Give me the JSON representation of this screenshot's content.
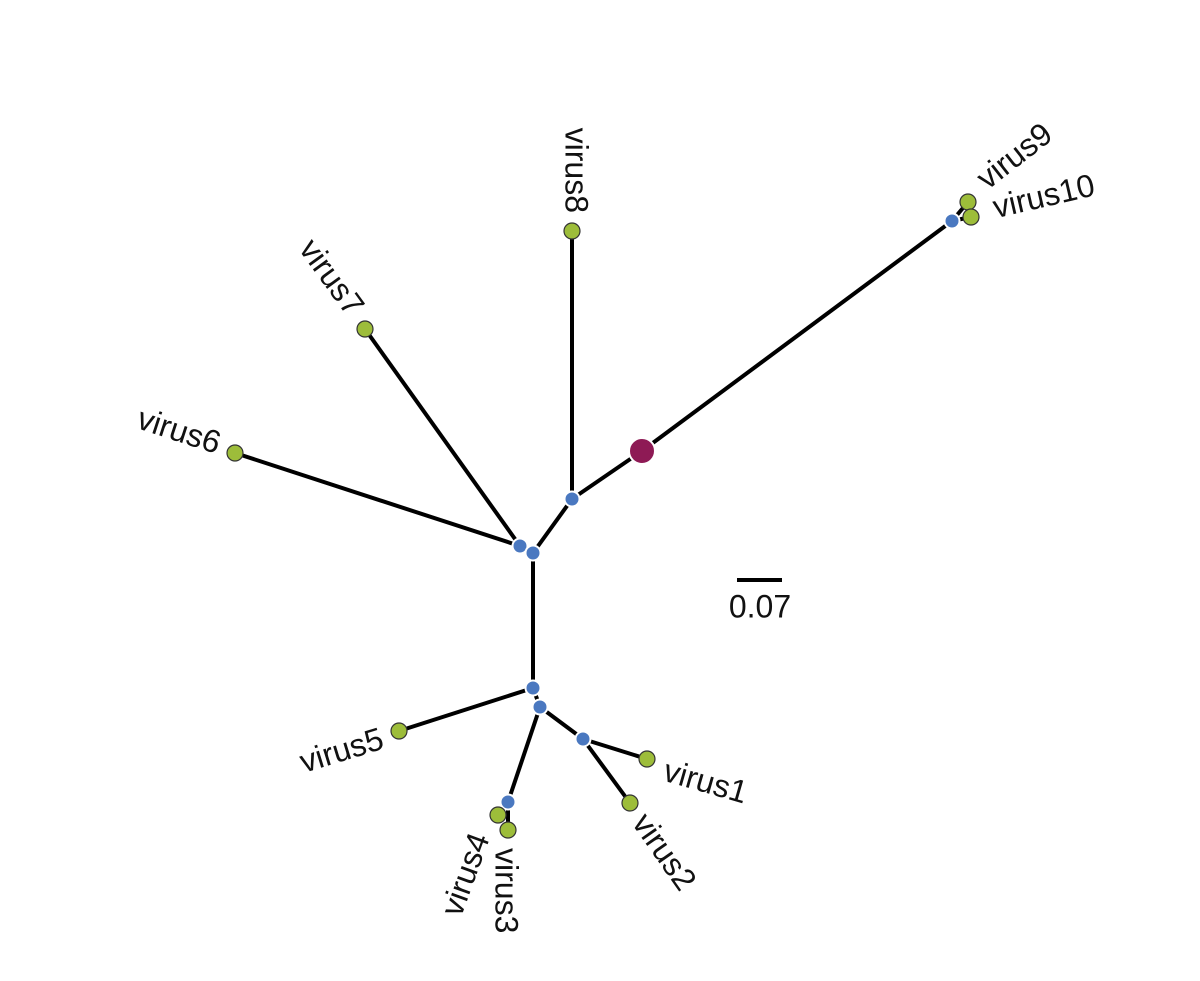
{
  "tree": {
    "leaves": [
      {
        "label": "virus1"
      },
      {
        "label": "virus2"
      },
      {
        "label": "virus3"
      },
      {
        "label": "virus4"
      },
      {
        "label": "virus5"
      },
      {
        "label": "virus6"
      },
      {
        "label": "virus7"
      },
      {
        "label": "virus8"
      },
      {
        "label": "virus9"
      },
      {
        "label": "virus10"
      }
    ]
  },
  "scale_bar": {
    "label": "0.07"
  }
}
